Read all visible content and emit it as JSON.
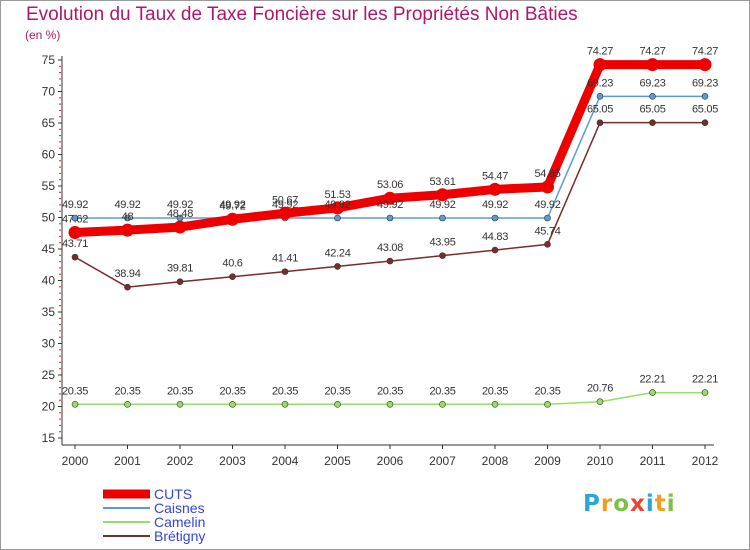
{
  "chart_data": {
    "type": "line",
    "title": "Evolution du Taux de Taxe Foncière sur les Propriétés Non Bâties",
    "ylabel": "(en %)",
    "xlabel": "",
    "ylim": [
      15,
      75
    ],
    "y_ticks": [
      15,
      20,
      25,
      30,
      35,
      40,
      45,
      50,
      55,
      60,
      65,
      70,
      75
    ],
    "categories": [
      "2000",
      "2001",
      "2002",
      "2003",
      "2004",
      "2005",
      "2006",
      "2007",
      "2008",
      "2009",
      "2010",
      "2011",
      "2012"
    ],
    "series": [
      {
        "name": "CUTS",
        "color": "#ee0000",
        "values": [
          47.62,
          48,
          48.48,
          49.72,
          50.67,
          51.53,
          53.06,
          53.61,
          54.47,
          54.85,
          74.27,
          74.27,
          74.27
        ],
        "labels": [
          "47.62",
          "48",
          "48.48",
          "49.72",
          "50.67",
          "51.53",
          "53.06",
          "53.61",
          "54.47",
          "54.85",
          "74.27",
          "74.27",
          "74.27"
        ]
      },
      {
        "name": "Caisnes",
        "color": "#5b9bd5",
        "values": [
          49.92,
          49.92,
          49.92,
          49.92,
          49.92,
          49.92,
          49.92,
          49.92,
          49.92,
          49.92,
          69.23,
          69.23,
          69.23
        ],
        "labels": [
          "49.92",
          "49.92",
          "49.92",
          "49.92",
          "49.92",
          "49.92",
          "49.92",
          "49.92",
          "49.92",
          "49.92",
          "69.23",
          "69.23",
          "69.23"
        ]
      },
      {
        "name": "Camelin",
        "color": "#99dd66",
        "values": [
          20.35,
          20.35,
          20.35,
          20.35,
          20.35,
          20.35,
          20.35,
          20.35,
          20.35,
          20.35,
          20.76,
          22.21,
          22.21
        ],
        "labels": [
          "20.35",
          "20.35",
          "20.35",
          "20.35",
          "20.35",
          "20.35",
          "20.35",
          "20.35",
          "20.35",
          "20.35",
          "20.76",
          "22.21",
          "22.21"
        ]
      },
      {
        "name": "Brétigny",
        "color": "#7a2b2b",
        "values": [
          43.71,
          38.94,
          39.81,
          40.6,
          41.41,
          42.24,
          43.08,
          43.95,
          44.83,
          45.74,
          65.05,
          65.05,
          65.05
        ],
        "labels": [
          "43.71",
          "38.94",
          "39.81",
          "40.6",
          "41.41",
          "42.24",
          "43.08",
          "43.95",
          "44.83",
          "45.74",
          "65.05",
          "65.05",
          "65.05"
        ]
      }
    ],
    "legend_position": "bottom-left",
    "grid": false
  },
  "branding": {
    "letters": [
      "P",
      "r",
      "o",
      "x",
      "i",
      "t",
      "i"
    ],
    "colors": [
      "#2aa7d8",
      "#f0a020",
      "#7cc242",
      "#e8452c",
      "#2aa7d8",
      "#f0a020",
      "#7cc242"
    ]
  }
}
